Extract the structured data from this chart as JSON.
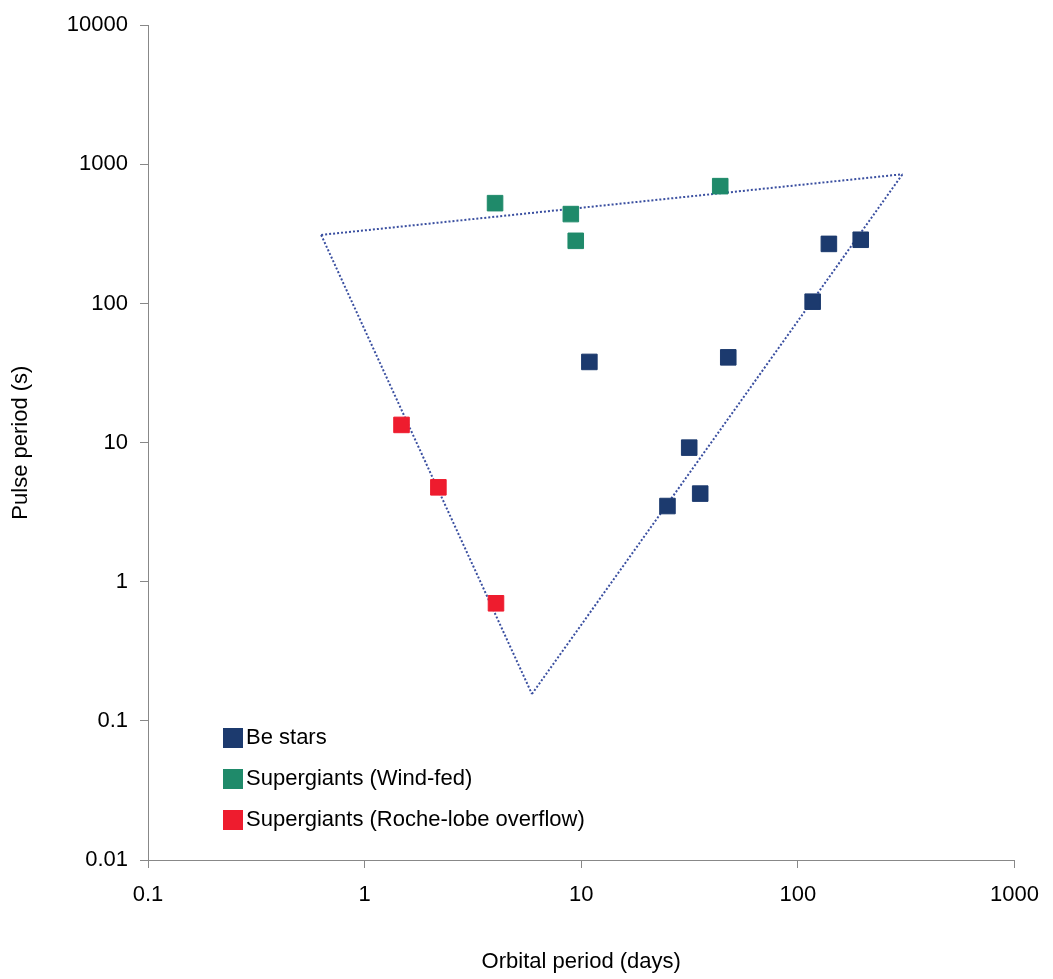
{
  "chart_data": {
    "type": "scatter",
    "xlabel": "Orbital period (days)",
    "ylabel": "Pulse period (s)",
    "log": "xy",
    "xlim": [
      0.1,
      1000
    ],
    "xticks": [
      0.1,
      1,
      10,
      100,
      1000
    ],
    "ylim": [
      0.01,
      10000
    ],
    "yticks": [
      0.01,
      0.1,
      1,
      10,
      100,
      1000,
      10000
    ],
    "grid": false,
    "legend": "bottom left",
    "marker": "square",
    "series": [
      {
        "name": "Be stars",
        "color": "#1c3a6e",
        "x": [
          10.9,
          47.7,
          31.5,
          25,
          35.4,
          117,
          139,
          195
        ],
        "values": [
          38,
          41,
          9.2,
          3.5,
          4.3,
          103,
          268,
          287
        ]
      },
      {
        "name": "Supergiants (Wind-fed)",
        "color": "#1f8a6a",
        "x": [
          4.0,
          8.95,
          9.43,
          43.8
        ],
        "values": [
          526,
          439,
          282,
          697
        ]
      },
      {
        "name": "Supergiants (Roche-lobe overflow)",
        "color": "#ee1c2e",
        "x": [
          1.48,
          2.19,
          4.04
        ],
        "values": [
          13.4,
          4.77,
          0.7
        ]
      },
      {
        "type": "line",
        "color": "#3a4fa0",
        "line_style": "dotted",
        "marker": "none",
        "x": [
          0.63,
          304
        ],
        "values": [
          311,
          849
        ]
      },
      {
        "type": "line",
        "color": "#3a4fa0",
        "line_style": "dotted",
        "marker": "none",
        "x": [
          5.92,
          304
        ],
        "values": [
          0.156,
          849
        ]
      },
      {
        "type": "line",
        "color": "#3a4fa0",
        "line_style": "dotted",
        "marker": "none",
        "x": [
          0.63,
          5.92
        ],
        "values": [
          311,
          0.156
        ]
      }
    ]
  }
}
